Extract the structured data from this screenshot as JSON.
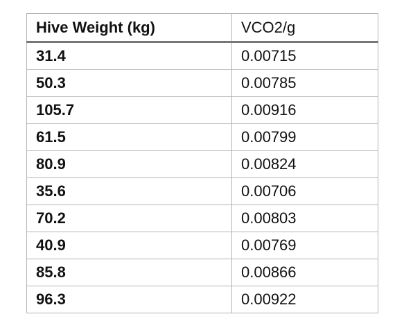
{
  "table": {
    "headers": [
      "Hive Weight (kg)",
      "VCO2/g"
    ],
    "rows": [
      [
        "31.4",
        "0.00715"
      ],
      [
        "50.3",
        "0.00785"
      ],
      [
        "105.7",
        "0.00916"
      ],
      [
        "61.5",
        "0.00799"
      ],
      [
        "80.9",
        "0.00824"
      ],
      [
        "35.6",
        "0.00706"
      ],
      [
        "70.2",
        "0.00803"
      ],
      [
        "40.9",
        "0.00769"
      ],
      [
        "85.8",
        "0.00866"
      ],
      [
        "96.3",
        "0.00922"
      ]
    ]
  },
  "colors": {
    "border": "#b3b3b3",
    "header_rule": "#777777",
    "text": "#111111"
  }
}
